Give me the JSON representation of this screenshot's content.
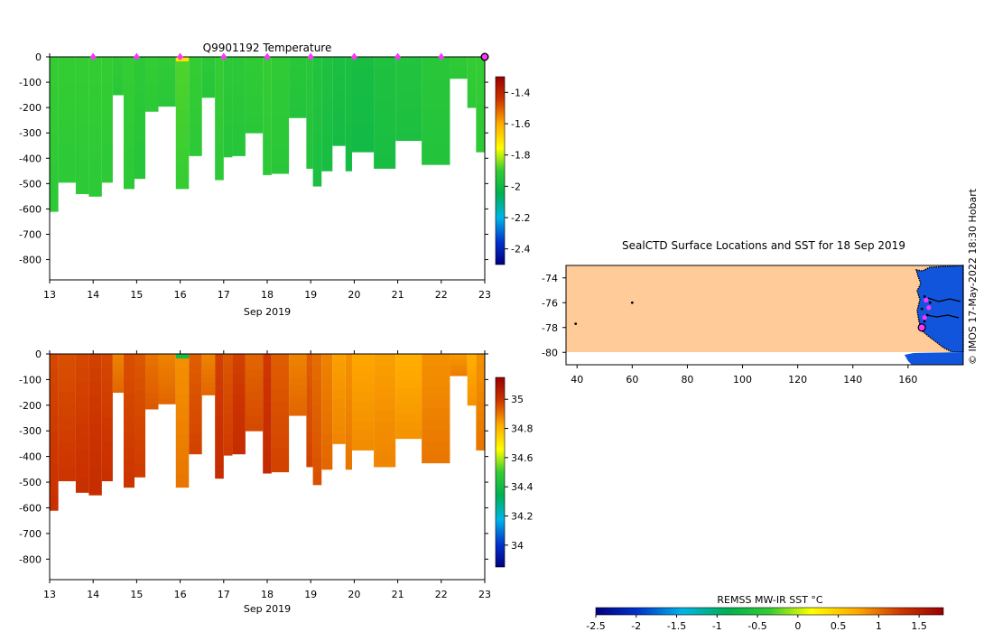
{
  "credit": "© IMOS 17-May-2022 18:30 Hobart",
  "chart_data": [
    {
      "type": "heatmap",
      "id": "temp",
      "title": "Q9901192  Temperature",
      "xlabel": "Sep 2019",
      "xlim": [
        13,
        23
      ],
      "x_ticks": [
        "13",
        "14",
        "15",
        "16",
        "17",
        "18",
        "19",
        "20",
        "21",
        "22",
        "23"
      ],
      "ylim": [
        -880,
        0
      ],
      "y_ticks": [
        "0",
        "-100",
        "-200",
        "-300",
        "-400",
        "-500",
        "-600",
        "-700",
        "-800"
      ],
      "y_tick_values": [
        0,
        -100,
        -200,
        -300,
        -400,
        -500,
        -600,
        -700,
        -800
      ],
      "colorbar": {
        "range": [
          -2.5,
          -1.3
        ],
        "ticks": [
          "-1.4",
          "-1.6",
          "-1.8",
          "-2",
          "-2.2",
          "-2.4"
        ],
        "tick_values": [
          -1.4,
          -1.6,
          -1.8,
          -2,
          -2.2,
          -2.4
        ],
        "colors": [
          "#000080",
          "#0033cc",
          "#00b4e6",
          "#00b050",
          "#33cc33",
          "#ffff00",
          "#ffaa00",
          "#cc3300",
          "#990000"
        ]
      },
      "surface_markers_x": [
        14,
        15,
        16,
        17,
        18,
        19,
        20,
        21,
        22
      ],
      "last_marker_x": 23,
      "profiles": [
        {
          "x0": 13.0,
          "x1": 13.2,
          "bottom": -610,
          "value": -1.9
        },
        {
          "x0": 13.2,
          "x1": 13.6,
          "bottom": -495,
          "value": -1.9
        },
        {
          "x0": 13.6,
          "x1": 13.9,
          "bottom": -540,
          "value": -1.9
        },
        {
          "x0": 13.9,
          "x1": 14.2,
          "bottom": -550,
          "value": -1.9
        },
        {
          "x0": 14.2,
          "x1": 14.45,
          "bottom": -495,
          "value": -1.9
        },
        {
          "x0": 14.45,
          "x1": 14.7,
          "bottom": -150,
          "value": -1.91
        },
        {
          "x0": 14.7,
          "x1": 14.95,
          "bottom": -520,
          "value": -1.9
        },
        {
          "x0": 14.95,
          "x1": 15.2,
          "bottom": -480,
          "value": -1.92
        },
        {
          "x0": 15.2,
          "x1": 15.5,
          "bottom": -215,
          "value": -1.9
        },
        {
          "x0": 15.5,
          "x1": 15.9,
          "bottom": -195,
          "value": -1.91
        },
        {
          "x0": 15.9,
          "x1": 16.2,
          "bottom": -520,
          "value": -1.88,
          "top_value": -1.7
        },
        {
          "x0": 16.2,
          "x1": 16.5,
          "bottom": -390,
          "value": -1.9
        },
        {
          "x0": 16.5,
          "x1": 16.8,
          "bottom": -160,
          "value": -1.92
        },
        {
          "x0": 16.8,
          "x1": 17.0,
          "bottom": -485,
          "value": -1.9
        },
        {
          "x0": 17.0,
          "x1": 17.2,
          "bottom": -395,
          "value": -1.92
        },
        {
          "x0": 17.2,
          "x1": 17.5,
          "bottom": -390,
          "value": -1.92
        },
        {
          "x0": 17.5,
          "x1": 17.9,
          "bottom": -300,
          "value": -1.91
        },
        {
          "x0": 17.9,
          "x1": 18.1,
          "bottom": -465,
          "value": -1.9
        },
        {
          "x0": 18.1,
          "x1": 18.5,
          "bottom": -460,
          "value": -1.91
        },
        {
          "x0": 18.5,
          "x1": 18.9,
          "bottom": -240,
          "value": -1.93
        },
        {
          "x0": 18.9,
          "x1": 19.05,
          "bottom": -440,
          "value": -1.93
        },
        {
          "x0": 19.05,
          "x1": 19.25,
          "bottom": -510,
          "value": -1.95
        },
        {
          "x0": 19.25,
          "x1": 19.5,
          "bottom": -450,
          "value": -1.96
        },
        {
          "x0": 19.5,
          "x1": 19.8,
          "bottom": -350,
          "value": -1.97
        },
        {
          "x0": 19.8,
          "x1": 19.95,
          "bottom": -450,
          "value": -1.97
        },
        {
          "x0": 19.95,
          "x1": 20.45,
          "bottom": -375,
          "value": -1.98
        },
        {
          "x0": 20.45,
          "x1": 20.95,
          "bottom": -440,
          "value": -1.96
        },
        {
          "x0": 20.95,
          "x1": 21.55,
          "bottom": -330,
          "value": -1.95
        },
        {
          "x0": 21.55,
          "x1": 22.2,
          "bottom": -425,
          "value": -1.93
        },
        {
          "x0": 22.2,
          "x1": 22.6,
          "bottom": -85,
          "value": -1.91
        },
        {
          "x0": 22.6,
          "x1": 22.8,
          "bottom": -200,
          "value": -1.9
        },
        {
          "x0": 22.8,
          "x1": 23.0,
          "bottom": -375,
          "value": -1.9
        }
      ]
    },
    {
      "type": "heatmap",
      "id": "salt",
      "title": "",
      "xlabel": "Sep 2019",
      "xlim": [
        13,
        23
      ],
      "x_ticks": [
        "13",
        "14",
        "15",
        "16",
        "17",
        "18",
        "19",
        "20",
        "21",
        "22",
        "23"
      ],
      "ylim": [
        -880,
        0
      ],
      "y_ticks": [
        "0",
        "-100",
        "-200",
        "-300",
        "-400",
        "-500",
        "-600",
        "-700",
        "-800"
      ],
      "y_tick_values": [
        0,
        -100,
        -200,
        -300,
        -400,
        -500,
        -600,
        -700,
        -800
      ],
      "colorbar": {
        "range": [
          33.85,
          35.15
        ],
        "ticks": [
          "35",
          "34.8",
          "34.6",
          "34.4",
          "34.2",
          "34"
        ],
        "tick_values": [
          35,
          34.8,
          34.6,
          34.4,
          34.2,
          34
        ],
        "colors": [
          "#000080",
          "#0033cc",
          "#00b4e6",
          "#00b050",
          "#33cc33",
          "#ffff00",
          "#ffaa00",
          "#cc3300",
          "#990000"
        ]
      },
      "profiles": [
        {
          "x0": 13.0,
          "x1": 13.2,
          "bottom": -610,
          "value": 34.96
        },
        {
          "x0": 13.2,
          "x1": 13.6,
          "bottom": -495,
          "value": 34.95
        },
        {
          "x0": 13.6,
          "x1": 13.9,
          "bottom": -540,
          "value": 34.96
        },
        {
          "x0": 13.9,
          "x1": 14.2,
          "bottom": -550,
          "value": 34.97
        },
        {
          "x0": 14.2,
          "x1": 14.45,
          "bottom": -495,
          "value": 34.96
        },
        {
          "x0": 14.45,
          "x1": 14.7,
          "bottom": -150,
          "value": 34.88
        },
        {
          "x0": 14.7,
          "x1": 14.95,
          "bottom": -520,
          "value": 34.95
        },
        {
          "x0": 14.95,
          "x1": 15.2,
          "bottom": -480,
          "value": 34.94
        },
        {
          "x0": 15.2,
          "x1": 15.5,
          "bottom": -215,
          "value": 34.9
        },
        {
          "x0": 15.5,
          "x1": 15.9,
          "bottom": -195,
          "value": 34.88
        },
        {
          "x0": 15.9,
          "x1": 16.2,
          "bottom": -520,
          "value": 34.86,
          "top_value": 34.4
        },
        {
          "x0": 16.2,
          "x1": 16.5,
          "bottom": -390,
          "value": 34.93
        },
        {
          "x0": 16.5,
          "x1": 16.8,
          "bottom": -160,
          "value": 34.88
        },
        {
          "x0": 16.8,
          "x1": 17.0,
          "bottom": -485,
          "value": 34.97
        },
        {
          "x0": 17.0,
          "x1": 17.2,
          "bottom": -395,
          "value": 34.94
        },
        {
          "x0": 17.2,
          "x1": 17.5,
          "bottom": -390,
          "value": 34.97
        },
        {
          "x0": 17.5,
          "x1": 17.9,
          "bottom": -300,
          "value": 34.92
        },
        {
          "x0": 17.9,
          "x1": 18.1,
          "bottom": -465,
          "value": 34.98
        },
        {
          "x0": 18.1,
          "x1": 18.5,
          "bottom": -460,
          "value": 34.93
        },
        {
          "x0": 18.5,
          "x1": 18.9,
          "bottom": -240,
          "value": 34.88
        },
        {
          "x0": 18.9,
          "x1": 19.05,
          "bottom": -440,
          "value": 34.93
        },
        {
          "x0": 19.05,
          "x1": 19.25,
          "bottom": -510,
          "value": 34.91
        },
        {
          "x0": 19.25,
          "x1": 19.5,
          "bottom": -450,
          "value": 34.88
        },
        {
          "x0": 19.5,
          "x1": 19.8,
          "bottom": -350,
          "value": 34.84
        },
        {
          "x0": 19.8,
          "x1": 19.95,
          "bottom": -450,
          "value": 34.86
        },
        {
          "x0": 19.95,
          "x1": 20.45,
          "bottom": -375,
          "value": 34.83
        },
        {
          "x0": 20.45,
          "x1": 20.95,
          "bottom": -440,
          "value": 34.84
        },
        {
          "x0": 20.95,
          "x1": 21.55,
          "bottom": -330,
          "value": 34.82
        },
        {
          "x0": 21.55,
          "x1": 22.2,
          "bottom": -425,
          "value": 34.86
        },
        {
          "x0": 22.2,
          "x1": 22.6,
          "bottom": -85,
          "value": 34.85
        },
        {
          "x0": 22.6,
          "x1": 22.8,
          "bottom": -200,
          "value": 34.82
        },
        {
          "x0": 22.8,
          "x1": 23.0,
          "bottom": -375,
          "value": 34.86
        }
      ]
    },
    {
      "type": "map",
      "id": "map",
      "title": "SealCTD Surface Locations and SST for 18 Sep 2019",
      "xlim": [
        36,
        180
      ],
      "ylim": [
        -81,
        -73
      ],
      "x_ticks": [
        "40",
        "60",
        "80",
        "100",
        "120",
        "140",
        "160"
      ],
      "x_tick_values": [
        40,
        60,
        80,
        100,
        120,
        140,
        160
      ],
      "y_ticks": [
        "-74",
        "-76",
        "-78",
        "-80"
      ],
      "y_tick_values": [
        -74,
        -76,
        -78,
        -80
      ],
      "background_color": "#ffcc99",
      "sea_color": "#1155dd",
      "surface_locations": [
        [
          60,
          -76.0
        ],
        [
          39.5,
          -77.7
        ],
        [
          165,
          -78.0
        ],
        [
          166,
          -77.5
        ],
        [
          167,
          -77.0
        ],
        [
          165,
          -76.5
        ],
        [
          168,
          -76.0
        ],
        [
          166,
          -75.5
        ]
      ],
      "highlight_location": [
        165,
        -78.0
      ],
      "colorbar_label": "REMSS MW-IR SST °C",
      "colorbar_range": [
        -2.5,
        1.8
      ],
      "colorbar_ticks": [
        "-2.5",
        "-2",
        "-1.5",
        "-1",
        "-0.5",
        "0",
        "0.5",
        "1",
        "1.5"
      ],
      "colorbar_tick_values": [
        -2.5,
        -2,
        -1.5,
        -1,
        -0.5,
        0,
        0.5,
        1,
        1.5
      ],
      "colorbar_colors": [
        "#000080",
        "#0033cc",
        "#00b4e6",
        "#00b050",
        "#33cc33",
        "#ffff00",
        "#ffaa00",
        "#cc3300",
        "#990000"
      ]
    }
  ]
}
